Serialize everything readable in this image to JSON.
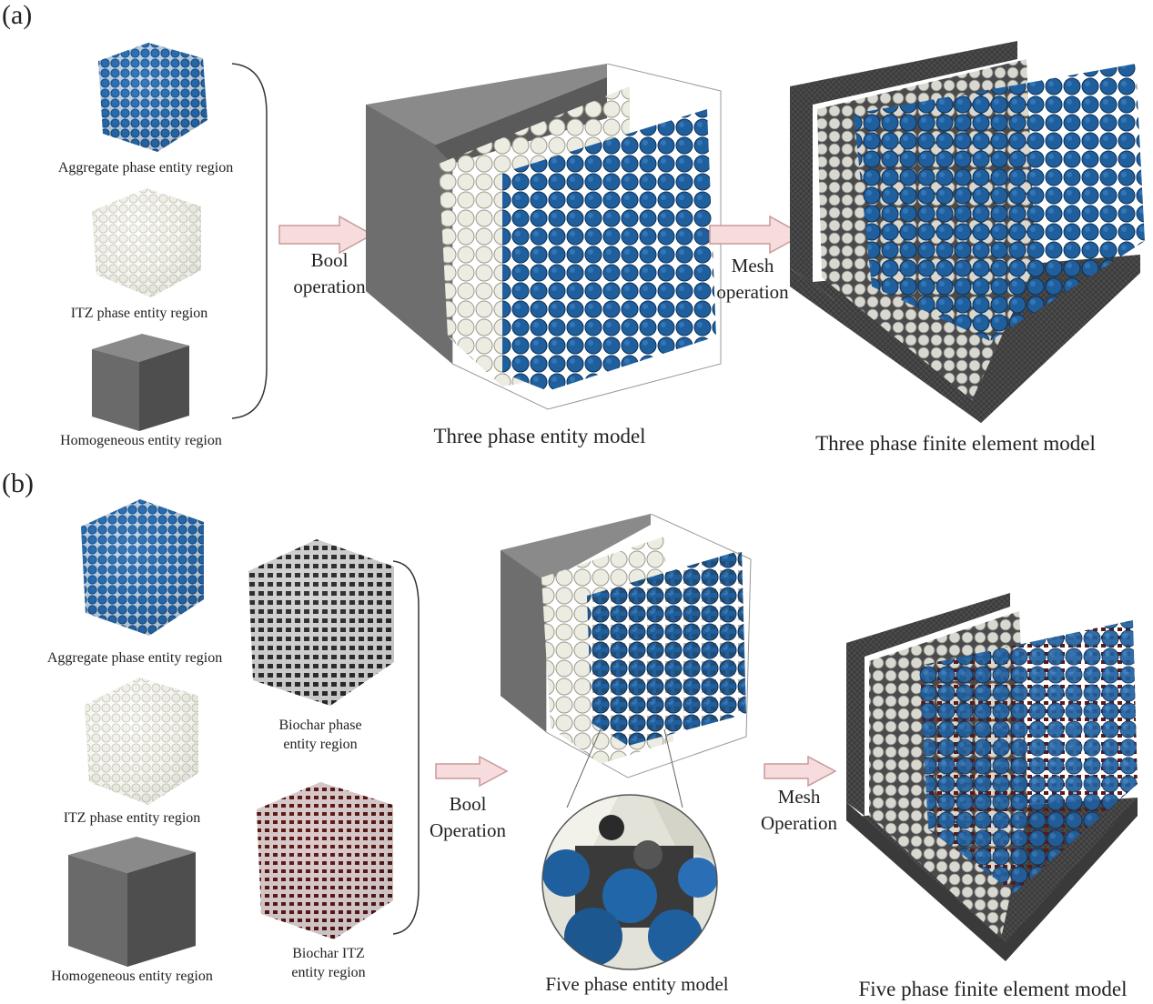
{
  "panel_a": {
    "tag": "(a)",
    "aggregate_label": "Aggregate phase entity region",
    "itz_label": "ITZ phase entity region",
    "homogeneous_label": "Homogeneous entity region",
    "bool_line1": "Bool",
    "bool_line2": "operation",
    "mesh_line1": "Mesh",
    "mesh_line2": "operation",
    "entity_model_label": "Three phase entity model",
    "fe_model_label": "Three phase finite element model"
  },
  "panel_b": {
    "tag": "(b)",
    "aggregate_label": "Aggregate phase entity region",
    "itz_label": "ITZ phase entity region",
    "homogeneous_label": "Homogeneous entity region",
    "biochar_line1": "Biochar phase",
    "biochar_line2": "entity region",
    "biochar_itz_line1": "Biochar ITZ",
    "biochar_itz_line2": "entity region",
    "bool_line1": "Bool",
    "bool_line2": "Operation",
    "mesh_line1": "Mesh",
    "mesh_line2": "Operation",
    "entity_model_label": "Five phase entity model",
    "fe_model_label": "Five phase finite element model"
  },
  "colors": {
    "aggregate": "#1f5f9e",
    "itz": "#e8e8dc",
    "homogeneous": "#6b6b6b",
    "biochar": "#2a2a2a",
    "biochar_itz": "#4a1414",
    "arrow_fill": "#f6dcdc",
    "arrow_stroke": "#c89a9a"
  }
}
